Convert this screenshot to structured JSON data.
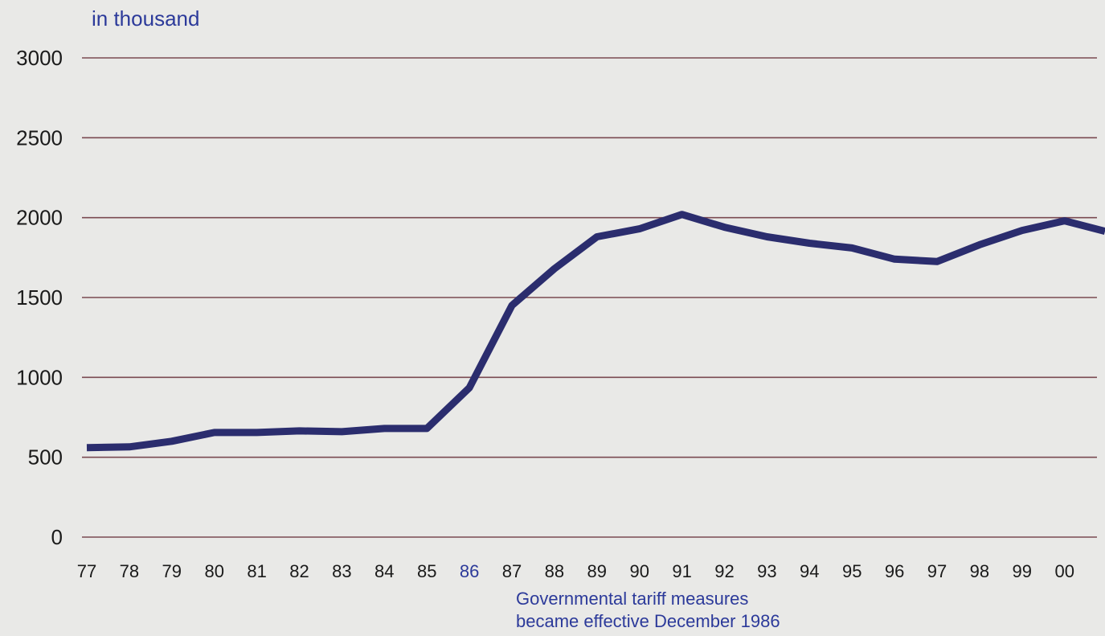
{
  "colors": {
    "background": "#e9e9e7",
    "line": "#2b2d6e",
    "grid": "#7a4a52",
    "text": "#1a1a1a",
    "accent_text": "#2c3a9a"
  },
  "chart_data": {
    "type": "line",
    "ylabel": "in thousand",
    "xlabel": "",
    "ylim": [
      0,
      3000
    ],
    "yticks": [
      0,
      500,
      1000,
      1500,
      2000,
      2500,
      3000
    ],
    "ytick_labels": [
      "0",
      "500",
      "1000",
      "1500",
      "2000",
      "2500",
      "3000"
    ],
    "xtick_labels": [
      "77",
      "78",
      "79",
      "80",
      "81",
      "82",
      "83",
      "84",
      "85",
      "86",
      "87",
      "88",
      "89",
      "90",
      "91",
      "92",
      "93",
      "94",
      "95",
      "96",
      "97",
      "98",
      "99",
      "00"
    ],
    "highlight_tick": "86",
    "grid": true,
    "series": [
      {
        "x": [
          1977,
          1978,
          1979,
          1980,
          1981,
          1982,
          1983,
          1984,
          1985,
          1986,
          1987,
          1988,
          1989,
          1990,
          1991,
          1992,
          1993,
          1994,
          1995,
          1996,
          1997,
          1998,
          1999,
          2000,
          2001
        ],
        "values": [
          560,
          565,
          600,
          655,
          655,
          665,
          660,
          680,
          680,
          935,
          1450,
          1680,
          1880,
          1930,
          2020,
          1940,
          1880,
          1840,
          1810,
          1740,
          1725,
          1830,
          1920,
          1980,
          1915
        ]
      }
    ],
    "annotation": {
      "line1": "Governmental tariff measures",
      "line2": "became effective December 1986"
    }
  }
}
